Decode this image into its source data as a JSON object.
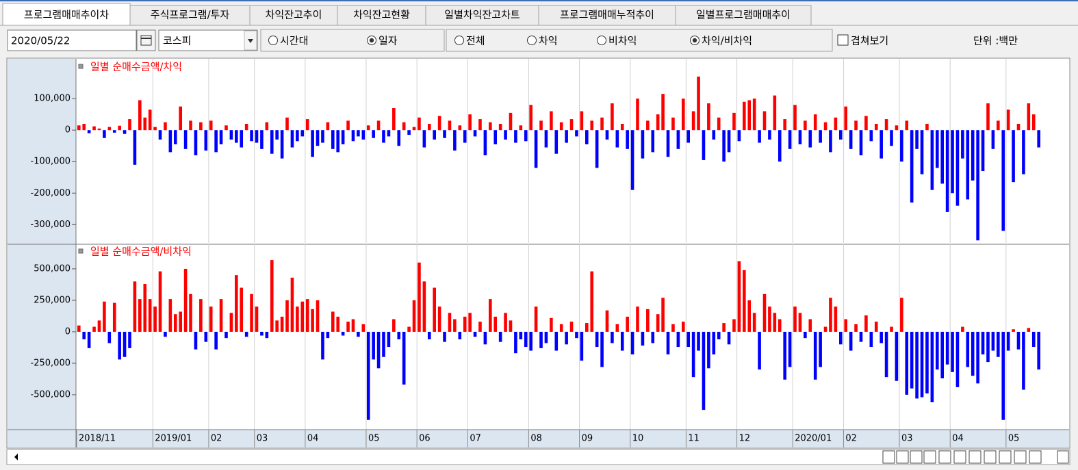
{
  "tabs": [
    {
      "label": "프로그램매매추이차",
      "active": true
    },
    {
      "label": "주식프로그램/투자",
      "active": false
    },
    {
      "label": "차익잔고추이",
      "active": false
    },
    {
      "label": "차익잔고현황",
      "active": false
    },
    {
      "label": "일별차익잔고차트",
      "active": false
    },
    {
      "label": "프로그램매매누적추이",
      "active": false
    },
    {
      "label": "일별프로그램매매추이",
      "active": false
    }
  ],
  "toolbar": {
    "date": "2020/05/22",
    "market": "코스피",
    "period_options": [
      {
        "label": "시간대",
        "checked": false
      },
      {
        "label": "일자",
        "checked": true
      }
    ],
    "type_options": [
      {
        "label": "전체",
        "checked": false
      },
      {
        "label": "차익",
        "checked": false
      },
      {
        "label": "비차익",
        "checked": false
      },
      {
        "label": "차익/비차익",
        "checked": true
      }
    ],
    "overlay": {
      "label": "겹쳐보기",
      "checked": false
    },
    "unit": "단위 :백만"
  },
  "chart_data": [
    {
      "type": "bar",
      "title": "일별 순매수금액/차익",
      "up_color": "#ff0000",
      "down_color": "#0000ff",
      "grid": true,
      "ylim": [
        -358000,
        222000
      ],
      "yticks": [
        {
          "value": 100000,
          "label": "100,000"
        },
        0,
        {
          "value": -100000,
          "label": "-100,000"
        },
        {
          "value": -200000,
          "label": "-200,000"
        },
        {
          "value": -300000,
          "label": "-300,000"
        }
      ],
      "values": [
        15000,
        20000,
        -10000,
        12000,
        5000,
        -25000,
        10000,
        -8000,
        14000,
        -12000,
        35000,
        -110000,
        95000,
        40000,
        65000,
        10000,
        -30000,
        25000,
        -70000,
        -45000,
        75000,
        -60000,
        30000,
        -80000,
        25000,
        -65000,
        30000,
        -70000,
        -45000,
        15000,
        -30000,
        -40000,
        -55000,
        20000,
        -35000,
        -40000,
        -60000,
        25000,
        -75000,
        -30000,
        -90000,
        40000,
        -55000,
        -35000,
        -20000,
        35000,
        -85000,
        -50000,
        -40000,
        25000,
        -60000,
        -70000,
        -45000,
        30000,
        -35000,
        -20000,
        -30000,
        15000,
        -25000,
        30000,
        -40000,
        -20000,
        70000,
        -50000,
        25000,
        -15000,
        10000,
        40000,
        -55000,
        20000,
        -30000,
        45000,
        -25000,
        30000,
        -65000,
        15000,
        -40000,
        50000,
        -20000,
        35000,
        -80000,
        25000,
        -45000,
        20000,
        -30000,
        55000,
        -40000,
        15000,
        -35000,
        80000,
        -120000,
        30000,
        -55000,
        60000,
        -75000,
        25000,
        -40000,
        35000,
        -20000,
        60000,
        -45000,
        30000,
        -120000,
        40000,
        -30000,
        85000,
        -55000,
        20000,
        -60000,
        -190000,
        100000,
        -90000,
        30000,
        -70000,
        50000,
        115000,
        -85000,
        40000,
        -60000,
        100000,
        -40000,
        60000,
        170000,
        -95000,
        85000,
        -30000,
        40000,
        -100000,
        -70000,
        55000,
        -35000,
        90000,
        95000,
        100000,
        -40000,
        60000,
        -30000,
        110000,
        -100000,
        35000,
        -60000,
        80000,
        -45000,
        30000,
        -55000,
        50000,
        -40000,
        25000,
        -70000,
        40000,
        -30000,
        75000,
        -60000,
        30000,
        -80000,
        45000,
        -35000,
        20000,
        -90000,
        35000,
        -50000,
        15000,
        -100000,
        30000,
        -230000,
        -60000,
        -140000,
        20000,
        -190000,
        -120000,
        -170000,
        -260000,
        -200000,
        -240000,
        -90000,
        -220000,
        -160000,
        -350000,
        -130000,
        85000,
        -60000,
        30000,
        -320000,
        65000,
        -165000,
        20000,
        -140000,
        85000,
        50000,
        -55000
      ]
    },
    {
      "type": "bar",
      "title": "일별 순매수금액/비차익",
      "up_color": "#ff0000",
      "down_color": "#0000ff",
      "grid": true,
      "ylim": [
        -772000,
        690000
      ],
      "yticks": [
        {
          "value": 500000,
          "label": "500,000"
        },
        {
          "value": 250000,
          "label": "250,000"
        },
        0,
        {
          "value": -250000,
          "label": "-250,000"
        },
        {
          "value": -500000,
          "label": "-500,000"
        }
      ],
      "xticks": [
        {
          "value": 0,
          "label": "2018/11"
        },
        {
          "value": 15,
          "label": "2019/01"
        },
        {
          "value": 26,
          "label": "02"
        },
        {
          "value": 35,
          "label": "03"
        },
        {
          "value": 45,
          "label": "04"
        },
        {
          "value": 57,
          "label": "05"
        },
        {
          "value": 67,
          "label": "06"
        },
        {
          "value": 77,
          "label": "07"
        },
        {
          "value": 89,
          "label": "08"
        },
        {
          "value": 99,
          "label": "09"
        },
        {
          "value": 109,
          "label": "10"
        },
        {
          "value": 120,
          "label": "11"
        },
        {
          "value": 130,
          "label": "12"
        },
        {
          "value": 141,
          "label": "2020/01"
        },
        {
          "value": 151,
          "label": "02"
        },
        {
          "value": 162,
          "label": "03"
        },
        {
          "value": 172,
          "label": "04"
        },
        {
          "value": 183,
          "label": "05"
        }
      ],
      "values": [
        50000,
        -60000,
        -130000,
        40000,
        90000,
        240000,
        -90000,
        230000,
        -220000,
        -200000,
        -130000,
        400000,
        260000,
        380000,
        260000,
        200000,
        480000,
        -40000,
        260000,
        140000,
        160000,
        500000,
        300000,
        -140000,
        260000,
        -80000,
        200000,
        -140000,
        260000,
        -50000,
        150000,
        450000,
        350000,
        -40000,
        300000,
        200000,
        -30000,
        -50000,
        570000,
        90000,
        120000,
        250000,
        430000,
        200000,
        240000,
        260000,
        180000,
        250000,
        -220000,
        -50000,
        160000,
        120000,
        -30000,
        80000,
        100000,
        -40000,
        60000,
        -700000,
        -220000,
        -290000,
        -200000,
        -120000,
        100000,
        -60000,
        -420000,
        40000,
        250000,
        550000,
        400000,
        -60000,
        350000,
        200000,
        -80000,
        150000,
        100000,
        -60000,
        120000,
        150000,
        -40000,
        80000,
        -100000,
        260000,
        120000,
        -80000,
        150000,
        90000,
        -170000,
        -60000,
        -120000,
        -150000,
        200000,
        -130000,
        -90000,
        110000,
        -150000,
        60000,
        -100000,
        80000,
        -50000,
        -230000,
        70000,
        480000,
        -120000,
        -280000,
        170000,
        -90000,
        60000,
        -150000,
        120000,
        -180000,
        200000,
        -110000,
        180000,
        -90000,
        140000,
        270000,
        -180000,
        60000,
        -120000,
        80000,
        -120000,
        -360000,
        -150000,
        -620000,
        -290000,
        -180000,
        -60000,
        70000,
        -100000,
        100000,
        560000,
        490000,
        250000,
        150000,
        -300000,
        300000,
        200000,
        150000,
        100000,
        -380000,
        -280000,
        200000,
        150000,
        -50000,
        100000,
        -380000,
        -280000,
        40000,
        270000,
        200000,
        -100000,
        100000,
        -150000,
        60000,
        -80000,
        130000,
        -120000,
        80000,
        -90000,
        -360000,
        40000,
        -390000,
        270000,
        -500000,
        -450000,
        -530000,
        -520000,
        -490000,
        -560000,
        -300000,
        -370000,
        -260000,
        -320000,
        -440000,
        40000,
        -280000,
        -350000,
        -410000,
        -180000,
        -240000,
        -150000,
        -200000,
        -700000,
        -150000,
        20000,
        -140000,
        -460000,
        30000,
        -120000,
        -300000
      ]
    }
  ]
}
